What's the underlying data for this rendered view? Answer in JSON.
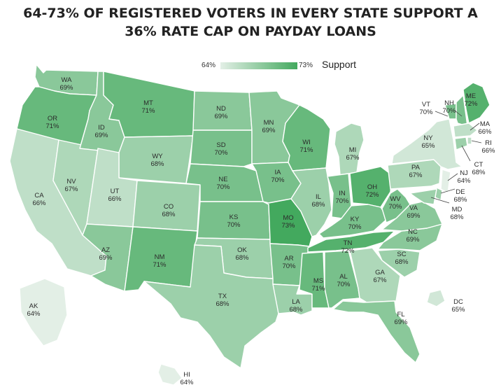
{
  "title": {
    "line1": "64-73% OF REGISTERED VOTERS IN EVERY STATE SUPPORT A",
    "line2": "36% RATE CAP ON PAYDAY LOANS"
  },
  "legend": {
    "min_label": "64%",
    "max_label": "73%",
    "title": "Support",
    "min_value": 64,
    "max_value": 73
  },
  "colors": {
    "low": "#e3efe6",
    "high": "#43a95e"
  },
  "states": [
    {
      "abbr": "WA",
      "value": 69,
      "pct": "69%"
    },
    {
      "abbr": "OR",
      "value": 71,
      "pct": "71%"
    },
    {
      "abbr": "CA",
      "value": 66,
      "pct": "66%"
    },
    {
      "abbr": "NV",
      "value": 67,
      "pct": "67%"
    },
    {
      "abbr": "ID",
      "value": 69,
      "pct": "69%"
    },
    {
      "abbr": "MT",
      "value": 71,
      "pct": "71%"
    },
    {
      "abbr": "WY",
      "value": 68,
      "pct": "68%"
    },
    {
      "abbr": "UT",
      "value": 66,
      "pct": "66%"
    },
    {
      "abbr": "AZ",
      "value": 69,
      "pct": "69%"
    },
    {
      "abbr": "CO",
      "value": 68,
      "pct": "68%"
    },
    {
      "abbr": "NM",
      "value": 71,
      "pct": "71%"
    },
    {
      "abbr": "ND",
      "value": 69,
      "pct": "69%"
    },
    {
      "abbr": "SD",
      "value": 70,
      "pct": "70%"
    },
    {
      "abbr": "NE",
      "value": 70,
      "pct": "70%"
    },
    {
      "abbr": "KS",
      "value": 70,
      "pct": "70%"
    },
    {
      "abbr": "OK",
      "value": 68,
      "pct": "68%"
    },
    {
      "abbr": "TX",
      "value": 68,
      "pct": "68%"
    },
    {
      "abbr": "MN",
      "value": 69,
      "pct": "69%"
    },
    {
      "abbr": "IA",
      "value": 70,
      "pct": "70%"
    },
    {
      "abbr": "MO",
      "value": 73,
      "pct": "73%"
    },
    {
      "abbr": "AR",
      "value": 70,
      "pct": "70%"
    },
    {
      "abbr": "LA",
      "value": 68,
      "pct": "68%"
    },
    {
      "abbr": "WI",
      "value": 71,
      "pct": "71%"
    },
    {
      "abbr": "IL",
      "value": 68,
      "pct": "68%"
    },
    {
      "abbr": "MI",
      "value": 67,
      "pct": "67%"
    },
    {
      "abbr": "IN",
      "value": 70,
      "pct": "70%"
    },
    {
      "abbr": "OH",
      "value": 72,
      "pct": "72%"
    },
    {
      "abbr": "KY",
      "value": 70,
      "pct": "70%"
    },
    {
      "abbr": "TN",
      "value": 72,
      "pct": "72%"
    },
    {
      "abbr": "MS",
      "value": 71,
      "pct": "71%"
    },
    {
      "abbr": "AL",
      "value": 70,
      "pct": "70%"
    },
    {
      "abbr": "GA",
      "value": 67,
      "pct": "67%"
    },
    {
      "abbr": "FL",
      "value": 69,
      "pct": "69%"
    },
    {
      "abbr": "SC",
      "value": 68,
      "pct": "68%"
    },
    {
      "abbr": "NC",
      "value": 69,
      "pct": "69%"
    },
    {
      "abbr": "VA",
      "value": 69,
      "pct": "69%"
    },
    {
      "abbr": "WV",
      "value": 70,
      "pct": "70%"
    },
    {
      "abbr": "PA",
      "value": 67,
      "pct": "67%"
    },
    {
      "abbr": "NY",
      "value": 65,
      "pct": "65%"
    },
    {
      "abbr": "VT",
      "value": 70,
      "pct": "70%"
    },
    {
      "abbr": "NH",
      "value": 70,
      "pct": "70%"
    },
    {
      "abbr": "ME",
      "value": 72,
      "pct": "72%"
    },
    {
      "abbr": "MA",
      "value": 66,
      "pct": "66%"
    },
    {
      "abbr": "RI",
      "value": 66,
      "pct": "66%"
    },
    {
      "abbr": "CT",
      "value": 68,
      "pct": "68%"
    },
    {
      "abbr": "NJ",
      "value": 64,
      "pct": "64%"
    },
    {
      "abbr": "DE",
      "value": 68,
      "pct": "68%"
    },
    {
      "abbr": "MD",
      "value": 68,
      "pct": "68%"
    },
    {
      "abbr": "DC",
      "value": 65,
      "pct": "65%"
    },
    {
      "abbr": "AK",
      "value": 64,
      "pct": "64%"
    },
    {
      "abbr": "HI",
      "value": 64,
      "pct": "64%"
    }
  ]
}
